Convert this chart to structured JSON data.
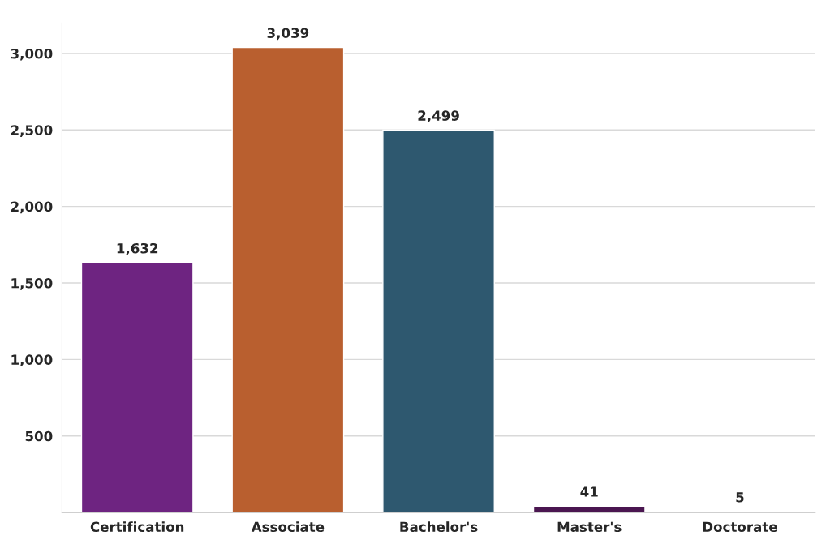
{
  "chart_data": {
    "type": "bar",
    "categories": [
      "Certification",
      "Associate",
      "Bachelor's",
      "Master's",
      "Doctorate"
    ],
    "values": [
      1632,
      3039,
      2499,
      41,
      5
    ],
    "colors": [
      "#6e2481",
      "#b95f2f",
      "#2e586f",
      "#4a1650",
      "#c4584c"
    ],
    "ylim": [
      0,
      3200
    ],
    "yticks": [
      {
        "value": 0,
        "label": null
      },
      500,
      {
        "value": 1000,
        "label": "1,000"
      },
      {
        "value": 1500,
        "label": "1,500"
      },
      {
        "value": 2000,
        "label": "2,000"
      },
      {
        "value": 2500,
        "label": "2,500"
      },
      {
        "value": 3000,
        "label": "3,000"
      }
    ],
    "value_labels": [
      "1,632",
      "3,039",
      "2,499",
      "41",
      "5"
    ],
    "grid": "y"
  }
}
